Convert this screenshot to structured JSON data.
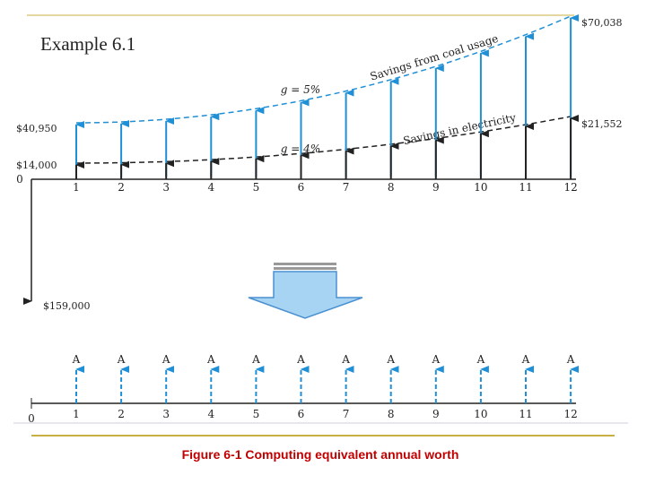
{
  "title": "Example 6.1",
  "top_diagram": {
    "periods": [
      0,
      1,
      2,
      3,
      4,
      5,
      6,
      7,
      8,
      9,
      10,
      11,
      12
    ],
    "initial_cost": "$159,000",
    "coal_first": "$40,950",
    "coal_last": "$70,038",
    "electricity_first": "$14,000",
    "electricity_last": "$21,552",
    "curves": [
      {
        "label": "Savings from coal usage",
        "growth": "g = 5%"
      },
      {
        "label": "Savings in electricity",
        "growth": "g = 4%"
      }
    ]
  },
  "bottom_diagram": {
    "periods": [
      0,
      1,
      2,
      3,
      4,
      5,
      6,
      7,
      8,
      9,
      10,
      11,
      12
    ],
    "payment_label": "A"
  },
  "caption": "Figure 6-1 Computing equivalent annual worth"
}
